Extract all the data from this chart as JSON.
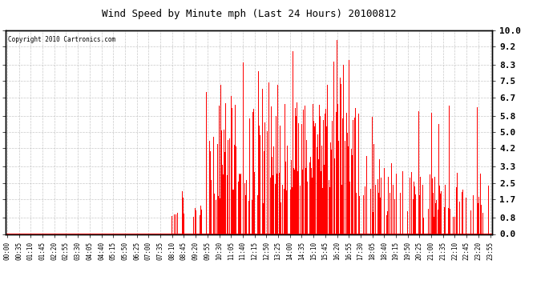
{
  "title": "Wind Speed by Minute mph (Last 24 Hours) 20100812",
  "copyright_text": "Copyright 2010 Cartronics.com",
  "bar_color": "#ff0000",
  "background_color": "#ffffff",
  "plot_bg_color": "#ffffff",
  "grid_color": "#bbbbbb",
  "ylim": [
    0.0,
    10.0
  ],
  "yticks": [
    0.0,
    0.8,
    1.7,
    2.5,
    3.3,
    4.2,
    5.0,
    5.8,
    6.7,
    7.5,
    8.3,
    9.2,
    10.0
  ],
  "xtick_labels": [
    "00:00",
    "00:35",
    "01:10",
    "01:45",
    "02:20",
    "02:55",
    "03:30",
    "04:05",
    "04:40",
    "05:15",
    "05:50",
    "06:25",
    "07:00",
    "07:35",
    "08:10",
    "08:45",
    "09:20",
    "09:55",
    "10:30",
    "11:05",
    "11:40",
    "12:15",
    "12:50",
    "13:25",
    "14:00",
    "14:35",
    "15:10",
    "15:45",
    "16:20",
    "16:55",
    "17:30",
    "18:05",
    "18:40",
    "19:15",
    "19:50",
    "20:25",
    "21:00",
    "21:35",
    "22:10",
    "22:45",
    "23:20",
    "23:55"
  ],
  "figsize": [
    6.9,
    3.75
  ],
  "dpi": 100
}
